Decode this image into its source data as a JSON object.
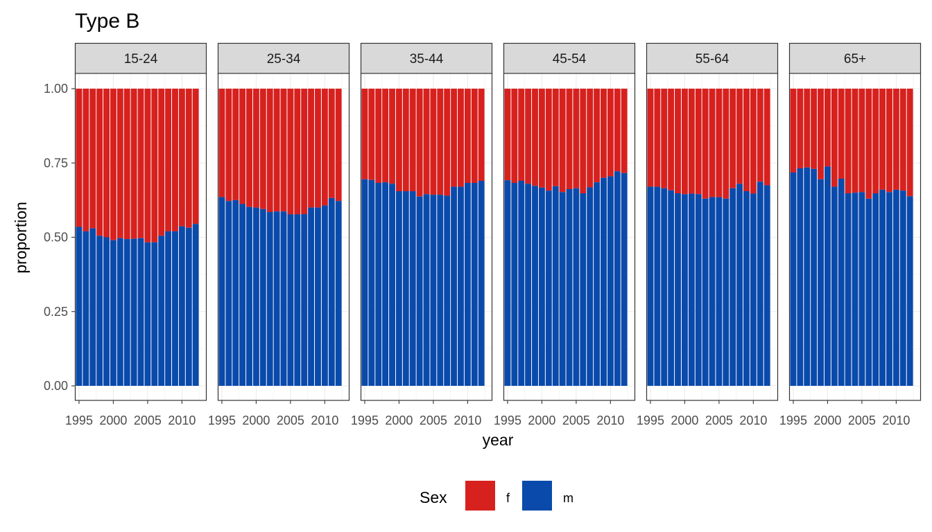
{
  "chart_data": {
    "type": "bar",
    "stacked": true,
    "title": "Type B",
    "xlabel": "year",
    "ylabel": "proportion",
    "ylim": [
      0,
      1
    ],
    "yticks": [
      "0.00",
      "0.25",
      "0.50",
      "0.75",
      "1.00"
    ],
    "xticks": [
      "1995",
      "2000",
      "2005",
      "2010"
    ],
    "x": [
      1995,
      1996,
      1997,
      1998,
      1999,
      2000,
      2001,
      2002,
      2003,
      2004,
      2005,
      2006,
      2007,
      2008,
      2009,
      2010,
      2011,
      2012
    ],
    "grid": true,
    "legend": {
      "title": "Sex",
      "position": "bottom",
      "entries": [
        {
          "label": "f",
          "color": "#D7211E"
        },
        {
          "label": "m",
          "color": "#0A4AAB"
        }
      ]
    },
    "panels": [
      {
        "name": "15-24",
        "m": [
          0.535,
          0.52,
          0.53,
          0.505,
          0.5,
          0.49,
          0.497,
          0.494,
          0.495,
          0.497,
          0.483,
          0.483,
          0.505,
          0.52,
          0.52,
          0.537,
          0.532,
          0.545
        ]
      },
      {
        "name": "25-34",
        "m": [
          0.635,
          0.622,
          0.625,
          0.612,
          0.602,
          0.6,
          0.595,
          0.585,
          0.587,
          0.587,
          0.577,
          0.577,
          0.578,
          0.6,
          0.6,
          0.607,
          0.632,
          0.622
        ]
      },
      {
        "name": "35-44",
        "m": [
          0.695,
          0.693,
          0.683,
          0.685,
          0.68,
          0.655,
          0.655,
          0.655,
          0.637,
          0.645,
          0.643,
          0.643,
          0.64,
          0.67,
          0.67,
          0.683,
          0.683,
          0.69
        ]
      },
      {
        "name": "45-54",
        "m": [
          0.692,
          0.683,
          0.69,
          0.68,
          0.673,
          0.667,
          0.657,
          0.672,
          0.652,
          0.662,
          0.665,
          0.648,
          0.668,
          0.685,
          0.7,
          0.705,
          0.722,
          0.716
        ]
      },
      {
        "name": "55-64",
        "m": [
          0.67,
          0.67,
          0.665,
          0.658,
          0.648,
          0.645,
          0.647,
          0.645,
          0.63,
          0.635,
          0.635,
          0.63,
          0.665,
          0.68,
          0.655,
          0.647,
          0.687,
          0.675
        ]
      },
      {
        "name": "65+",
        "m": [
          0.718,
          0.732,
          0.735,
          0.73,
          0.695,
          0.738,
          0.67,
          0.697,
          0.648,
          0.65,
          0.652,
          0.63,
          0.648,
          0.66,
          0.652,
          0.66,
          0.657,
          0.638
        ]
      }
    ]
  }
}
